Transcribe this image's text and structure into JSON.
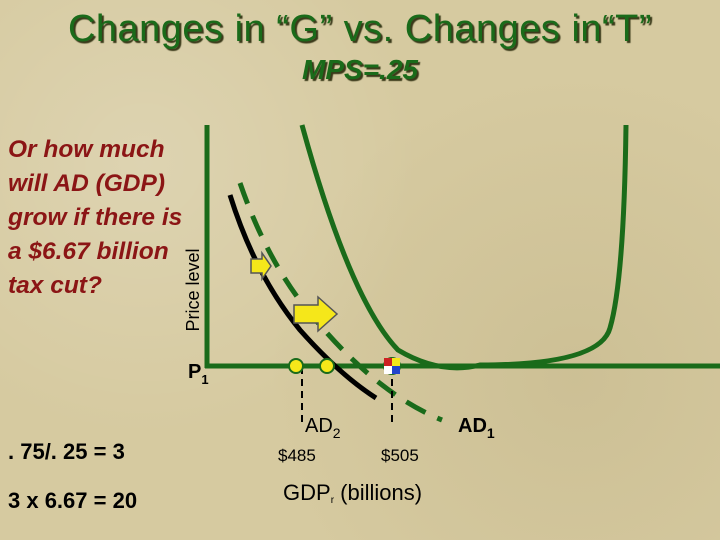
{
  "slide": {
    "title": "Changes in “G” vs. Changes in“T”",
    "subtitle": "MPS=.25",
    "question": "Or how much will AD (GDP) grow if there is a $6.67 billion tax cut?",
    "calc_line1": ". 75/. 25 = 3",
    "calc_line2": "3 x 6.67 = 20"
  },
  "diagram": {
    "y_axis_label": "Price level",
    "price_label": "P",
    "price_sub": "1",
    "x_axis_main": "GDP",
    "x_axis_sub": "r",
    "x_axis_tail": " (billions)",
    "gdp_low": "$485",
    "gdp_high": "$505",
    "ad1_label": "AD",
    "ad1_sub": "1",
    "ad2_label": "AD",
    "ad2_sub": "2",
    "colors": {
      "axis": "#1a6b1a",
      "curve_green": "#1a6b1a",
      "curve_black": "#000000",
      "arrow_fill": "#f5e71a",
      "marker_fill": "#f5e71a"
    }
  }
}
